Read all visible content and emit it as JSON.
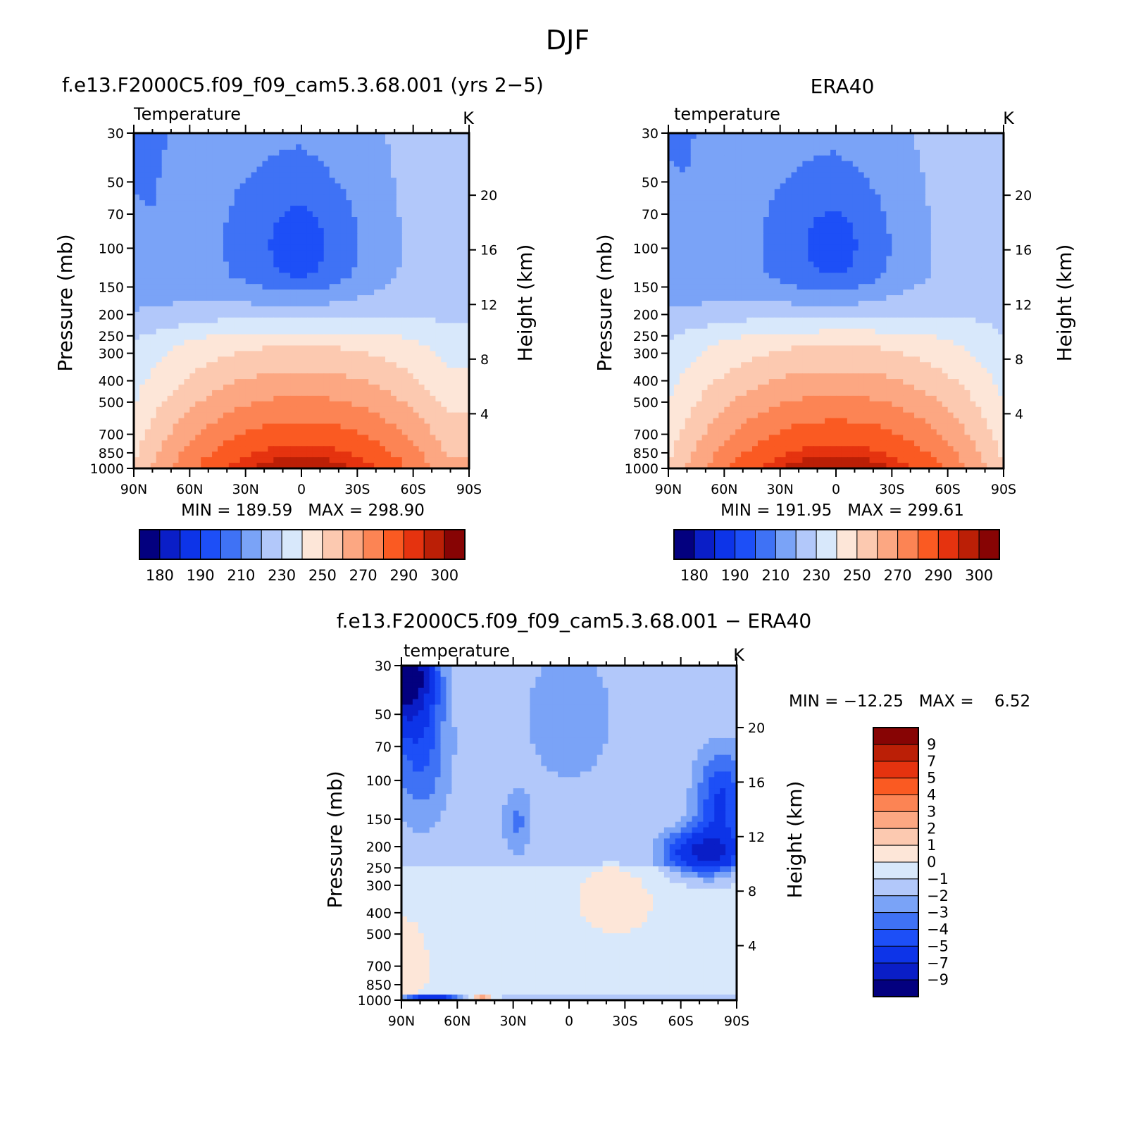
{
  "figure_title": "DJF",
  "colors": {
    "levels": [
      "#03007f",
      "#0a1ec7",
      "#0d34e8",
      "#1d4ff7",
      "#3f72f5",
      "#7aa3f7",
      "#b2c8fa",
      "#d8e8fb",
      "#fde6d8",
      "#fcc9b0",
      "#fca782",
      "#fc8454",
      "#fa5a22",
      "#e5330f",
      "#bb1f06",
      "#870404"
    ]
  },
  "chart_data": [
    {
      "type": "heatmap",
      "title": "f.e13.F2000C5.f09_f09_cam5.3.68.001 (yrs 2−5)",
      "left_label": "Temperature",
      "units": "K",
      "ylabel": "Pressure (mb)",
      "y2label": "Height (km)",
      "x_ticks": [
        "90N",
        "60N",
        "30N",
        "0",
        "30S",
        "60S",
        "90S"
      ],
      "x_values": [
        90,
        60,
        30,
        0,
        -30,
        -60,
        -90
      ],
      "y_ticks": [
        30,
        50,
        70,
        100,
        150,
        200,
        250,
        300,
        400,
        500,
        700,
        850,
        1000
      ],
      "y_range": [
        30,
        1000
      ],
      "y_scale": "log",
      "height_ticks": [
        20,
        16,
        12,
        8,
        4
      ],
      "min_max": "MIN = 189.59   MAX = 298.90",
      "min": 189.59,
      "max": 298.9,
      "colorbar_labels": [
        "180",
        "190",
        "210",
        "230",
        "250",
        "270",
        "290",
        "300"
      ],
      "levels": [
        180,
        185,
        190,
        200,
        210,
        220,
        230,
        240,
        250,
        260,
        270,
        280,
        290,
        295,
        300
      ],
      "model": "cam"
    },
    {
      "type": "heatmap",
      "title": "ERA40",
      "left_label": "temperature",
      "units": "K",
      "ylabel": "Pressure (mb)",
      "y2label": "Height (km)",
      "x_ticks": [
        "90N",
        "60N",
        "30N",
        "0",
        "30S",
        "60S",
        "90S"
      ],
      "x_values": [
        90,
        60,
        30,
        0,
        -30,
        -60,
        -90
      ],
      "y_ticks": [
        30,
        50,
        70,
        100,
        150,
        200,
        250,
        300,
        400,
        500,
        700,
        850,
        1000
      ],
      "y_range": [
        30,
        1000
      ],
      "y_scale": "log",
      "height_ticks": [
        20,
        16,
        12,
        8,
        4
      ],
      "min_max": "MIN = 191.95   MAX = 299.61",
      "min": 191.95,
      "max": 299.61,
      "colorbar_labels": [
        "180",
        "190",
        "210",
        "230",
        "250",
        "270",
        "290",
        "300"
      ],
      "levels": [
        180,
        185,
        190,
        200,
        210,
        220,
        230,
        240,
        250,
        260,
        270,
        280,
        290,
        295,
        300
      ],
      "model": "era"
    },
    {
      "type": "heatmap",
      "title": "f.e13.F2000C5.f09_f09_cam5.3.68.001 − ERA40",
      "left_label": "temperature",
      "units": "K",
      "ylabel": "Pressure (mb)",
      "y2label": "Height (km)",
      "x_ticks": [
        "90N",
        "60N",
        "30N",
        "0",
        "30S",
        "60S",
        "90S"
      ],
      "x_values": [
        90,
        60,
        30,
        0,
        -30,
        -60,
        -90
      ],
      "y_ticks": [
        30,
        50,
        70,
        100,
        150,
        200,
        250,
        300,
        400,
        500,
        700,
        850,
        1000
      ],
      "y_range": [
        30,
        1000
      ],
      "y_scale": "log",
      "height_ticks": [
        20,
        16,
        12,
        8,
        4
      ],
      "min_max": "MIN = −12.25   MAX =    6.52",
      "min": -12.25,
      "max": 6.52,
      "colorbar_labels": [
        "9",
        "7",
        "5",
        "4",
        "3",
        "2",
        "1",
        "0",
        "−1",
        "−2",
        "−3",
        "−4",
        "−5",
        "−7",
        "−9"
      ],
      "levels": [
        -9,
        -7,
        -5,
        -4,
        -3,
        -2,
        -1,
        0,
        1,
        2,
        3,
        4,
        5,
        7,
        9
      ],
      "model": "diff"
    }
  ]
}
